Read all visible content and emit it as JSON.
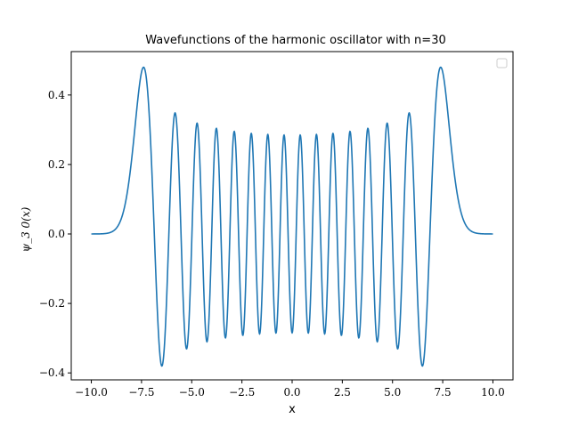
{
  "chart_data": {
    "type": "line",
    "title": "Wavefunctions of the harmonic oscillator with n=30",
    "xlabel": "x",
    "ylabel": "ψ_30(x)",
    "ylabel_display": "ψ_3 0(x)",
    "xlim": [
      -11.0,
      11.0
    ],
    "ylim": [
      -0.42,
      0.525
    ],
    "xticks": [
      -10.0,
      -7.5,
      -5.0,
      -2.5,
      0.0,
      2.5,
      5.0,
      7.5,
      10.0
    ],
    "xtick_labels": [
      "−10.0",
      "−7.5",
      "−5.0",
      "−2.5",
      "0.0",
      "2.5",
      "5.0",
      "7.5",
      "10.0"
    ],
    "yticks": [
      -0.4,
      -0.2,
      0.0,
      0.2,
      0.4
    ],
    "ytick_labels": [
      "−0.4",
      "−0.2",
      "0.0",
      "0.2",
      "0.4"
    ],
    "legend": "top-right (empty)",
    "grid": false,
    "color": "#1f77b4",
    "series": [
      {
        "n": 30,
        "x_range": [
          -10.0,
          10.0
        ],
        "peaks": [
          {
            "x": -7.4,
            "y": 0.48
          },
          {
            "x": 7.4,
            "y": 0.48
          }
        ],
        "troughs": [
          {
            "x": -6.5,
            "y": -0.38
          },
          {
            "x": 6.5,
            "y": -0.38
          }
        ]
      }
    ]
  }
}
